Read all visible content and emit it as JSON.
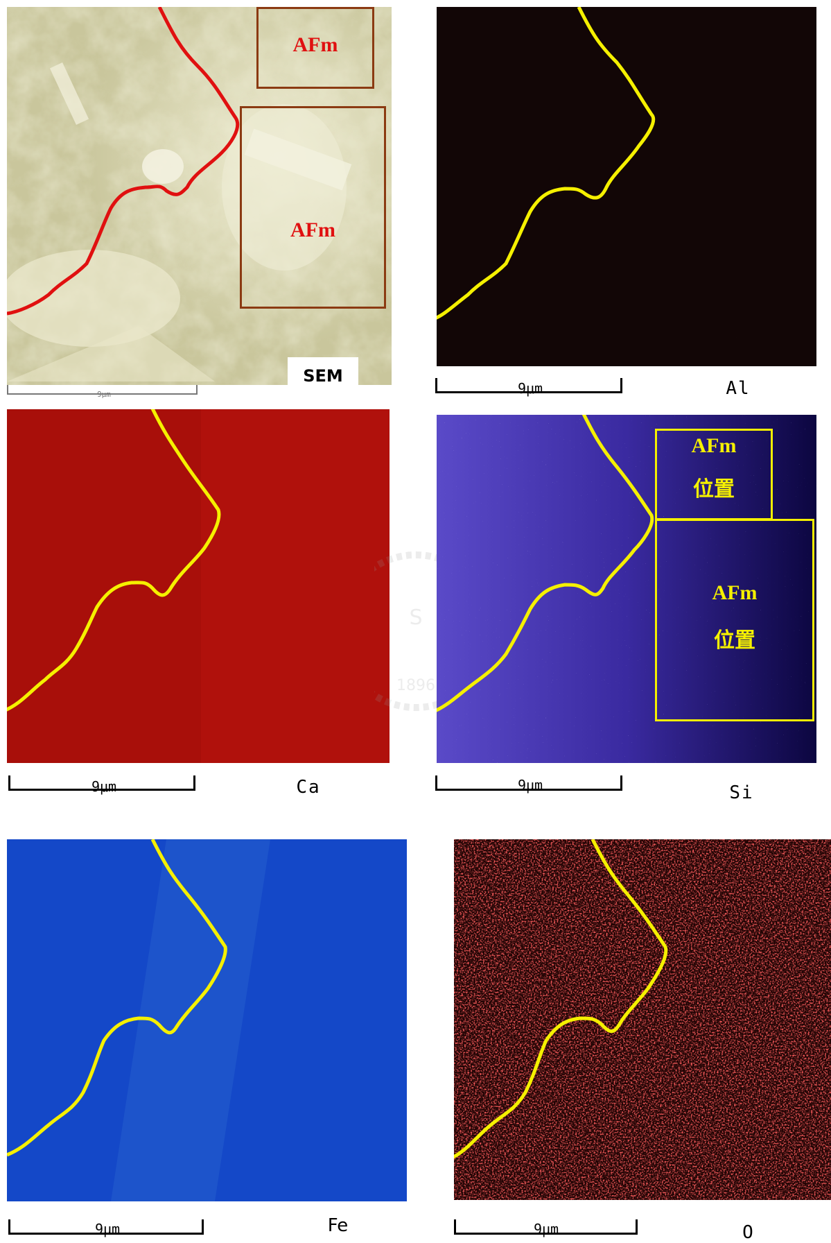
{
  "panels": {
    "sem": {
      "element_label": "SEM",
      "scale_label": "9μm",
      "box_labels": [
        "AFm",
        "AFm"
      ]
    },
    "al": {
      "element_label": "Al",
      "scale_label": "9μm"
    },
    "ca": {
      "element_label": "Ca",
      "scale_label": "9μm"
    },
    "si": {
      "element_label": "Si",
      "scale_label": "9μm",
      "box_labels": [
        "AFm",
        "位置",
        "AFm",
        "位置"
      ]
    },
    "fe": {
      "element_label": "Fe",
      "scale_label": "9μm"
    },
    "o": {
      "element_label": "O",
      "scale_label": "9μm"
    }
  },
  "colors": {
    "sem_background": "#d8d5b0",
    "boundary_sem": "#e01010",
    "boundary_maps": "#f5f000",
    "sem_box": "#8b3a12",
    "si_box": "#f5f000",
    "al_background": "#120606",
    "ca_background": "#a80f0a",
    "si_background": "#1a0f7a",
    "fe_background": "#1448c8",
    "o_background": "#200404"
  }
}
